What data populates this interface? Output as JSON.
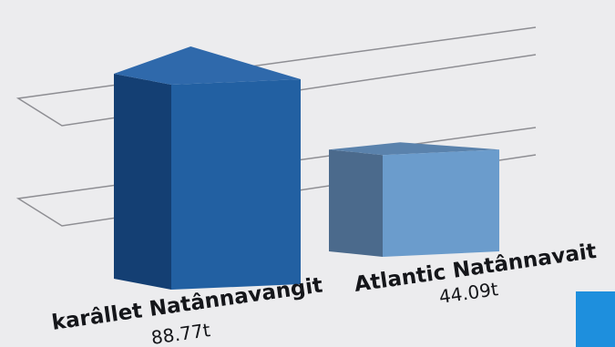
{
  "chart_data": {
    "type": "bar",
    "categories": [
      "karâllet Natânnavangit",
      "Atlantic Natânnavait"
    ],
    "series": [
      {
        "values": [
          88.77,
          44.09
        ]
      }
    ],
    "value_labels": [
      "88.77t",
      "44.09t"
    ],
    "style": "3d",
    "grid": true,
    "colors": {
      "bar1_front": "#2260a2",
      "bar1_side": "#143f73",
      "bar1_top": "#2f69ab",
      "bar2_front": "#6b9ccc",
      "bar2_side": "#4b6a8c",
      "bar2_top": "#5a82ac",
      "grid": "#8e8e93",
      "accent": "#1e8fdd"
    }
  }
}
